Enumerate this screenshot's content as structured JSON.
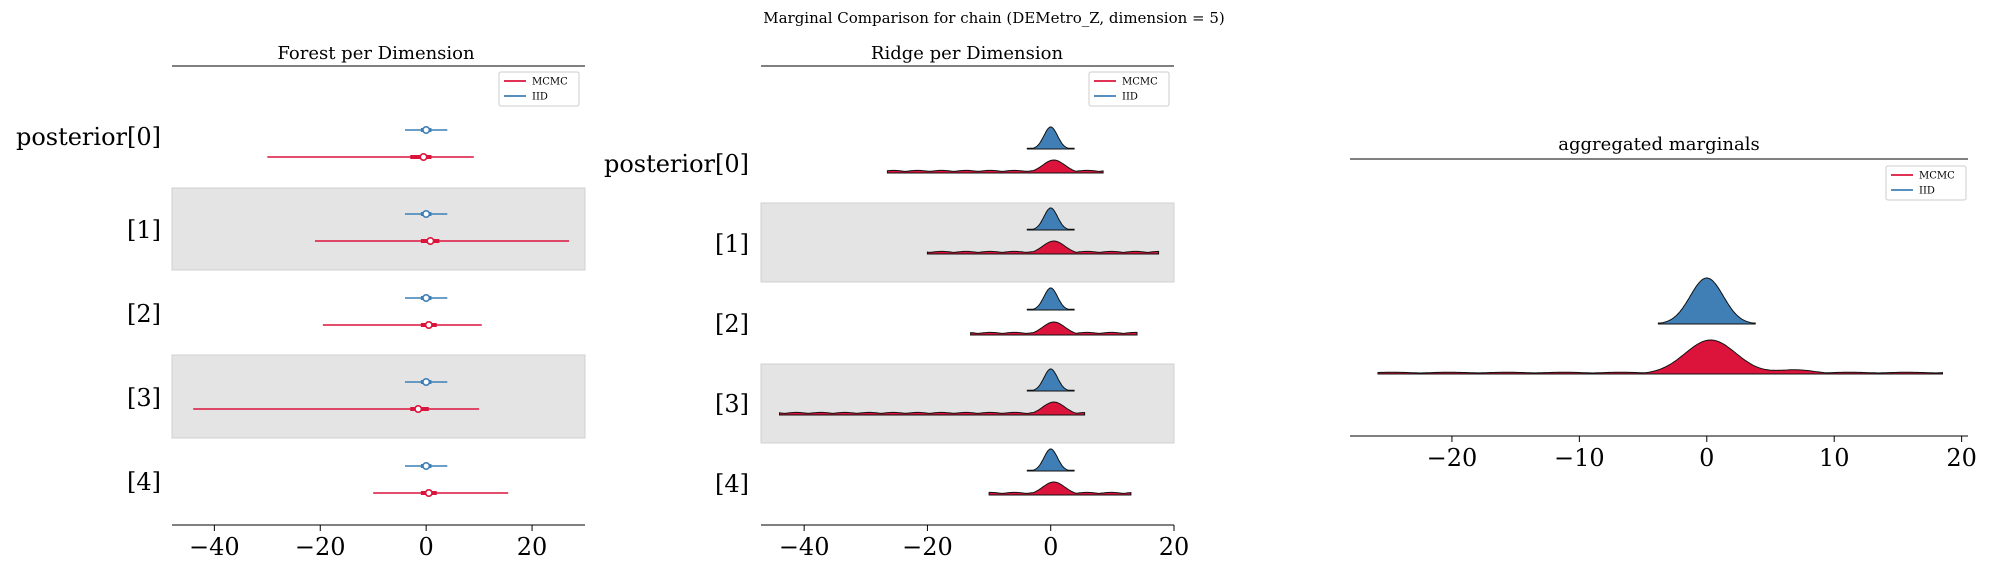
{
  "figure_title": "Marginal Comparison for chain (DEMetro_Z, dimension = 5)",
  "colors": {
    "mcmc": "#dc143c",
    "iid": "#3f7fb5",
    "band": "#e4e4e4",
    "axis": "#000000"
  },
  "legend": {
    "mcmc_label": "MCMC",
    "iid_label": "IID"
  },
  "chart_data": [
    {
      "type": "forest",
      "title": "Forest per Dimension",
      "xlabel": "",
      "ylabel": "",
      "xlim": [
        -48,
        30
      ],
      "xticks": [
        -40,
        -20,
        0,
        20
      ],
      "rows": [
        "posterior[0]",
        "[1]",
        "[2]",
        "[3]",
        "[4]"
      ],
      "banded_rows": [
        1,
        3
      ],
      "legend_position": "top-right",
      "series": [
        {
          "name": "MCMC",
          "intervals": [
            {
              "low": -30,
              "high": 9,
              "q_low": -3,
              "q_high": 1,
              "median": -0.5
            },
            {
              "low": -21,
              "high": 27,
              "q_low": -1,
              "q_high": 2.5,
              "median": 0.8
            },
            {
              "low": -19.5,
              "high": 10.5,
              "q_low": -1,
              "q_high": 2,
              "median": 0.5
            },
            {
              "low": -44,
              "high": 10,
              "q_low": -3,
              "q_high": 0.5,
              "median": -1.5
            },
            {
              "low": -10,
              "high": 15.5,
              "q_low": -1,
              "q_high": 2,
              "median": 0.5
            }
          ]
        },
        {
          "name": "IID",
          "intervals": [
            {
              "low": -4,
              "high": 4,
              "q_low": -1,
              "q_high": 1,
              "median": 0
            },
            {
              "low": -4,
              "high": 4,
              "q_low": -1,
              "q_high": 1,
              "median": 0
            },
            {
              "low": -4,
              "high": 4,
              "q_low": -1,
              "q_high": 1,
              "median": 0
            },
            {
              "low": -4,
              "high": 4,
              "q_low": -1,
              "q_high": 1,
              "median": 0
            },
            {
              "low": -4,
              "high": 4,
              "q_low": -1,
              "q_high": 1,
              "median": 0
            }
          ]
        }
      ]
    },
    {
      "type": "ridge",
      "title": "Ridge per Dimension",
      "xlabel": "",
      "ylabel": "",
      "xlim": [
        -47,
        20
      ],
      "xticks": [
        -40,
        -20,
        0,
        20
      ],
      "rows": [
        "posterior[0]",
        "[1]",
        "[2]",
        "[3]",
        "[4]"
      ],
      "banded_rows": [
        1,
        3
      ],
      "legend_position": "top-right",
      "series": [
        {
          "name": "IID",
          "ranges": [
            [
              -3.8,
              3.8
            ],
            [
              -3.8,
              3.8
            ],
            [
              -3.8,
              3.8
            ],
            [
              -3.8,
              3.8
            ],
            [
              -3.8,
              3.8
            ]
          ]
        },
        {
          "name": "MCMC",
          "ranges": [
            [
              -26.5,
              8.5
            ],
            [
              -20,
              17.5
            ],
            [
              -13,
              14
            ],
            [
              -44,
              5.5
            ],
            [
              -10,
              13
            ]
          ]
        }
      ]
    },
    {
      "type": "ridge",
      "title": "aggregated marginals",
      "xlabel": "",
      "ylabel": "",
      "xlim": [
        -28,
        20.5
      ],
      "xticks": [
        -20,
        -10,
        0,
        10,
        20
      ],
      "legend_position": "top-right",
      "series": [
        {
          "name": "IID",
          "range": [
            -3.8,
            3.8
          ]
        },
        {
          "name": "MCMC",
          "range": [
            -25.8,
            18.5
          ]
        }
      ]
    }
  ]
}
